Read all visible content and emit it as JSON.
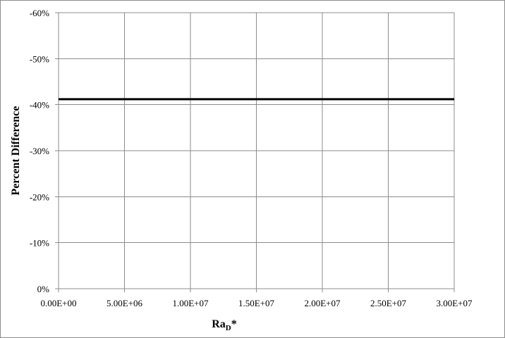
{
  "chart_data": {
    "type": "line",
    "title": "",
    "xlabel": "Ra",
    "xlabel_subscript": "D",
    "xlabel_suffix": "*",
    "ylabel": "Percent Difference",
    "xlim": [
      0,
      30000000
    ],
    "ylim": [
      0,
      -0.6
    ],
    "y_axis_inverted": true,
    "grid": true,
    "legend": "none",
    "x_ticks": [
      {
        "value": 0,
        "label": "0.00E+00"
      },
      {
        "value": 5000000,
        "label": "5.00E+06"
      },
      {
        "value": 10000000,
        "label": "1.00E+07"
      },
      {
        "value": 15000000,
        "label": "1.50E+07"
      },
      {
        "value": 20000000,
        "label": "2.00E+07"
      },
      {
        "value": 25000000,
        "label": "2.50E+07"
      },
      {
        "value": 30000000,
        "label": "3.00E+07"
      }
    ],
    "y_ticks": [
      {
        "value": 0,
        "label": "0%"
      },
      {
        "value": -0.1,
        "label": "-10%"
      },
      {
        "value": -0.2,
        "label": "-20%"
      },
      {
        "value": -0.3,
        "label": "-30%"
      },
      {
        "value": -0.4,
        "label": "-40%"
      },
      {
        "value": -0.5,
        "label": "-50%"
      },
      {
        "value": -0.6,
        "label": "-60%"
      }
    ],
    "series": [
      {
        "x": [
          0,
          30000000
        ],
        "y": [
          -0.412,
          -0.412
        ],
        "color": "#000000"
      }
    ],
    "colors": {
      "grid": "#8c8c8c",
      "axis": "#8c8c8c",
      "line": "#000000"
    }
  }
}
